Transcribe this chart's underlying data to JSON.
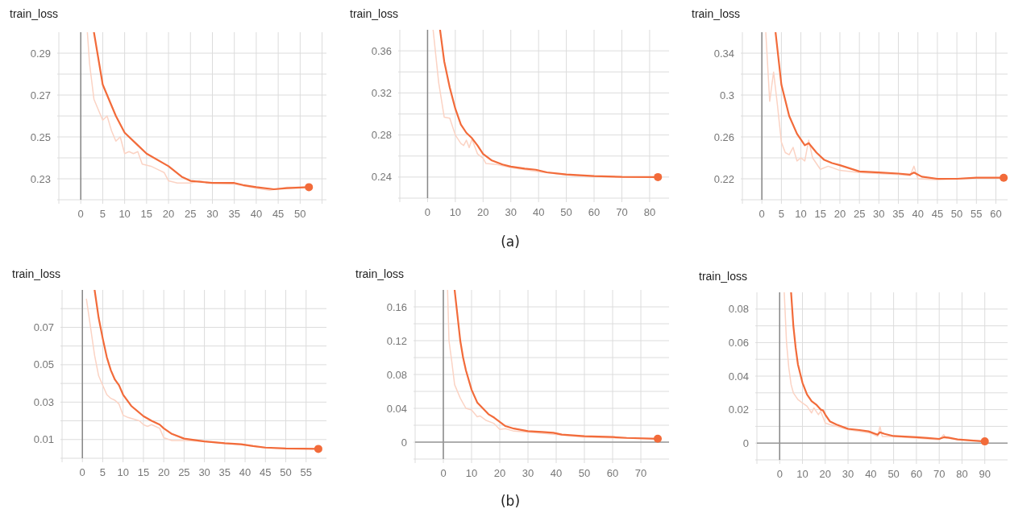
{
  "chart_data": [
    {
      "type": "line",
      "title": "train_loss",
      "xlim": [
        -5,
        56
      ],
      "ylim": [
        0.22,
        0.3
      ],
      "grid": true,
      "xticks": [
        {
          "value": -5,
          "label": null
        },
        0,
        5,
        10,
        15,
        20,
        25,
        30,
        35,
        40,
        45,
        50,
        {
          "value": 55,
          "label": null
        }
      ],
      "yticks": [
        {
          "value": 0.22,
          "label": null
        },
        0.23,
        {
          "value": 0.24,
          "label": null
        },
        0.25,
        {
          "value": 0.26,
          "label": null
        },
        0.27,
        {
          "value": 0.28,
          "label": null
        },
        0.29
      ],
      "series": [
        {
          "type": "line",
          "color": "#fbd3c4",
          "x": [
            1.5,
            2,
            3,
            5,
            6,
            7,
            8,
            9,
            10,
            11,
            12,
            13,
            14,
            16,
            18,
            19,
            20,
            22,
            25,
            27,
            30,
            35,
            40,
            43,
            47,
            52
          ],
          "values": [
            0.3,
            0.285,
            0.268,
            0.258,
            0.26,
            0.253,
            0.248,
            0.25,
            0.242,
            0.243,
            0.242,
            0.243,
            0.237,
            0.236,
            0.234,
            0.233,
            0.229,
            0.228,
            0.228,
            0.229,
            0.228,
            0.2275,
            0.2255,
            0.2245,
            0.226,
            0.226
          ]
        },
        {
          "type": "line",
          "color": "#f26b3a",
          "x": [
            3,
            5,
            7,
            8,
            10,
            13,
            15,
            20,
            23,
            25,
            30,
            35,
            37,
            40,
            44,
            47,
            52
          ],
          "values": [
            0.3,
            0.275,
            0.265,
            0.26,
            0.252,
            0.246,
            0.242,
            0.236,
            0.231,
            0.229,
            0.228,
            0.228,
            0.227,
            0.226,
            0.225,
            0.2255,
            0.226
          ]
        },
        {
          "type": "scatter",
          "marker": "circle",
          "color": "#f26b3a",
          "x": [
            52
          ],
          "values": [
            0.226
          ]
        }
      ]
    },
    {
      "type": "line",
      "title": "train_loss",
      "xlim": [
        -10,
        87
      ],
      "ylim": [
        0.22,
        0.38
      ],
      "grid": true,
      "annotations": [
        "(a)"
      ],
      "xticks": [
        {
          "value": -10,
          "label": null
        },
        0,
        10,
        20,
        30,
        40,
        50,
        60,
        70,
        80
      ],
      "yticks": [
        {
          "value": 0.22,
          "label": null
        },
        0.24,
        {
          "value": 0.26,
          "label": null
        },
        0.28,
        {
          "value": 0.3,
          "label": null
        },
        0.32,
        {
          "value": 0.34,
          "label": null
        },
        0.36
      ],
      "series": [
        {
          "type": "line",
          "color": "#fbd3c4",
          "x": [
            2,
            4,
            6,
            8,
            10,
            12,
            13,
            14,
            15,
            16,
            18,
            20,
            21,
            25,
            30,
            40,
            50,
            60,
            70,
            83
          ],
          "values": [
            0.38,
            0.33,
            0.297,
            0.296,
            0.28,
            0.272,
            0.27,
            0.275,
            0.268,
            0.276,
            0.262,
            0.258,
            0.253,
            0.252,
            0.249,
            0.245,
            0.242,
            0.2405,
            0.24,
            0.2395
          ]
        },
        {
          "type": "line",
          "color": "#f26b3a",
          "x": [
            4.5,
            6,
            8,
            10,
            12,
            14,
            16,
            18,
            20,
            23,
            27,
            30,
            35,
            39,
            43,
            50,
            60,
            70,
            83
          ],
          "values": [
            0.38,
            0.35,
            0.325,
            0.305,
            0.29,
            0.282,
            0.277,
            0.27,
            0.262,
            0.256,
            0.252,
            0.25,
            0.248,
            0.247,
            0.2445,
            0.2425,
            0.241,
            0.2402,
            0.24
          ]
        },
        {
          "type": "scatter",
          "marker": "circle",
          "color": "#f26b3a",
          "x": [
            83
          ],
          "values": [
            0.24
          ]
        }
      ]
    },
    {
      "type": "line",
      "title": "train_loss",
      "xlim": [
        -5,
        63
      ],
      "ylim": [
        0.2,
        0.36
      ],
      "grid": true,
      "xticks": [
        {
          "value": -5,
          "label": null
        },
        0,
        5,
        10,
        15,
        20,
        25,
        30,
        35,
        40,
        45,
        50,
        55,
        60
      ],
      "yticks": [
        {
          "value": 0.2,
          "label": null
        },
        0.22,
        {
          "value": 0.24,
          "label": null
        },
        0.26,
        {
          "value": 0.28,
          "label": null
        },
        0.3,
        {
          "value": 0.32,
          "label": null
        },
        0.34
      ],
      "series": [
        {
          "type": "line",
          "color": "#fbd3c4",
          "x": [
            1,
            2,
            3,
            4,
            5,
            6,
            7,
            8,
            9,
            10,
            11,
            12,
            13,
            15,
            17,
            20,
            25,
            30,
            35,
            38,
            39,
            40,
            45,
            50,
            55,
            62
          ],
          "values": [
            0.36,
            0.294,
            0.322,
            0.29,
            0.255,
            0.245,
            0.243,
            0.25,
            0.237,
            0.24,
            0.237,
            0.257,
            0.24,
            0.229,
            0.232,
            0.228,
            0.226,
            0.225,
            0.224,
            0.223,
            0.232,
            0.22,
            0.219,
            0.22,
            0.221,
            0.221
          ]
        },
        {
          "type": "line",
          "color": "#f26b3a",
          "x": [
            3.5,
            5,
            7,
            9,
            11,
            12,
            14,
            16,
            18,
            20,
            25,
            30,
            35,
            38,
            39,
            41,
            45,
            50,
            55,
            62
          ],
          "values": [
            0.36,
            0.31,
            0.28,
            0.263,
            0.252,
            0.254,
            0.245,
            0.238,
            0.235,
            0.233,
            0.227,
            0.226,
            0.225,
            0.224,
            0.226,
            0.222,
            0.22,
            0.22,
            0.221,
            0.221
          ]
        },
        {
          "type": "scatter",
          "marker": "circle",
          "color": "#f26b3a",
          "x": [
            62
          ],
          "values": [
            0.221
          ]
        }
      ]
    },
    {
      "type": "line",
      "title": "train_loss",
      "xlim": [
        -5,
        60
      ],
      "ylim": [
        0,
        0.09
      ],
      "grid": true,
      "xticks": [
        {
          "value": -5,
          "label": null
        },
        0,
        5,
        10,
        15,
        20,
        25,
        30,
        35,
        40,
        45,
        50,
        55
      ],
      "yticks": [
        {
          "value": 0,
          "label": null
        },
        0.01,
        {
          "value": 0.02,
          "label": null
        },
        0.03,
        {
          "value": 0.04,
          "label": null
        },
        0.05,
        {
          "value": 0.06,
          "label": null
        },
        0.07,
        {
          "value": 0.08,
          "label": null
        }
      ],
      "series": [
        {
          "type": "line",
          "color": "#fbd3c4",
          "x": [
            1,
            2,
            3,
            4,
            5,
            6,
            7,
            8,
            9,
            10,
            11,
            14,
            15,
            16,
            17,
            19,
            20,
            22,
            25,
            30,
            40,
            45,
            58
          ],
          "values": [
            0.085,
            0.07,
            0.055,
            0.044,
            0.039,
            0.034,
            0.032,
            0.031,
            0.029,
            0.023,
            0.022,
            0.02,
            0.018,
            0.017,
            0.018,
            0.016,
            0.011,
            0.0095,
            0.0095,
            0.009,
            0.007,
            0.0055,
            0.0049
          ]
        },
        {
          "type": "line",
          "color": "#f26b3a",
          "x": [
            3,
            4,
            5,
            6,
            7,
            8,
            9,
            10,
            12,
            15,
            17,
            19,
            20,
            22,
            25,
            30,
            35,
            39,
            42,
            45,
            50,
            58
          ],
          "values": [
            0.09,
            0.075,
            0.064,
            0.054,
            0.047,
            0.042,
            0.039,
            0.034,
            0.028,
            0.0225,
            0.02,
            0.018,
            0.016,
            0.013,
            0.0105,
            0.009,
            0.008,
            0.0075,
            0.0065,
            0.0057,
            0.0052,
            0.005
          ]
        },
        {
          "type": "scatter",
          "marker": "circle",
          "color": "#f26b3a",
          "x": [
            58
          ],
          "values": [
            0.005
          ]
        }
      ]
    },
    {
      "type": "line",
      "title": "train_loss",
      "xlim": [
        -10,
        80
      ],
      "ylim": [
        -0.02,
        0.18
      ],
      "grid": true,
      "annotations": [
        "(b)"
      ],
      "xticks": [
        {
          "value": -10,
          "label": null
        },
        0,
        10,
        20,
        30,
        40,
        50,
        60,
        70
      ],
      "yticks": [
        {
          "value": -0.02,
          "label": null
        },
        0,
        {
          "value": 0.02,
          "label": null
        },
        0.04,
        {
          "value": 0.06,
          "label": null
        },
        0.08,
        {
          "value": 0.1,
          "label": null
        },
        0.12,
        {
          "value": 0.14,
          "label": null
        },
        0.16
      ],
      "series": [
        {
          "type": "line",
          "color": "#fbd3c4",
          "x": [
            1.5,
            2,
            3,
            4,
            6,
            8,
            10,
            12,
            13,
            15,
            18,
            20,
            22,
            25,
            30,
            40,
            50,
            60,
            76
          ],
          "values": [
            0.18,
            0.12,
            0.095,
            0.068,
            0.052,
            0.04,
            0.038,
            0.03,
            0.031,
            0.026,
            0.022,
            0.015,
            0.016,
            0.013,
            0.012,
            0.009,
            0.006,
            0.005,
            0.004
          ]
        },
        {
          "type": "line",
          "color": "#f26b3a",
          "x": [
            4,
            5,
            6,
            7,
            8,
            10,
            12,
            14,
            16,
            18,
            20,
            22,
            25,
            30,
            35,
            39,
            42,
            50,
            60,
            65,
            76
          ],
          "values": [
            0.18,
            0.15,
            0.12,
            0.1,
            0.085,
            0.062,
            0.047,
            0.04,
            0.033,
            0.029,
            0.024,
            0.019,
            0.016,
            0.013,
            0.012,
            0.011,
            0.009,
            0.007,
            0.006,
            0.005,
            0.004
          ]
        },
        {
          "type": "scatter",
          "marker": "circle",
          "color": "#f26b3a",
          "x": [
            76
          ],
          "values": [
            0.004
          ]
        }
      ]
    },
    {
      "type": "line",
      "title": "train_loss",
      "xlim": [
        -10,
        100
      ],
      "ylim": [
        -0.01,
        0.09
      ],
      "grid": true,
      "xticks": [
        {
          "value": -10,
          "label": null
        },
        0,
        10,
        20,
        30,
        40,
        50,
        60,
        70,
        80,
        90
      ],
      "yticks": [
        {
          "value": -0.01,
          "label": null
        },
        0,
        {
          "value": 0.01,
          "label": null
        },
        0.02,
        {
          "value": 0.03,
          "label": null
        },
        0.04,
        {
          "value": 0.05,
          "label": null
        },
        0.06,
        {
          "value": 0.07,
          "label": null
        },
        0.08
      ],
      "series": [
        {
          "type": "line",
          "color": "#fbd3c4",
          "x": [
            2,
            3,
            4,
            5,
            6,
            8,
            10,
            12,
            14,
            15,
            17,
            18,
            20,
            22,
            25,
            30,
            40,
            43,
            44,
            45,
            50,
            60,
            70,
            72,
            73,
            80,
            90
          ],
          "values": [
            0.09,
            0.06,
            0.045,
            0.035,
            0.03,
            0.026,
            0.024,
            0.022,
            0.018,
            0.021,
            0.017,
            0.019,
            0.012,
            0.011,
            0.01,
            0.008,
            0.006,
            0.004,
            0.01,
            0.004,
            0.004,
            0.003,
            0.002,
            0.005,
            0.003,
            0.002,
            0.001
          ]
        },
        {
          "type": "line",
          "color": "#f26b3a",
          "x": [
            5,
            6,
            7,
            8,
            10,
            12,
            14,
            16,
            18,
            19,
            20,
            22,
            25,
            30,
            35,
            39,
            42,
            43,
            44,
            46,
            50,
            60,
            65,
            70,
            72,
            74,
            78,
            85,
            90
          ],
          "values": [
            0.09,
            0.07,
            0.057,
            0.047,
            0.036,
            0.029,
            0.025,
            0.023,
            0.02,
            0.0195,
            0.017,
            0.013,
            0.011,
            0.0085,
            0.0078,
            0.007,
            0.0055,
            0.005,
            0.0065,
            0.0055,
            0.0042,
            0.0035,
            0.003,
            0.0025,
            0.0035,
            0.0033,
            0.0022,
            0.0015,
            0.001
          ]
        },
        {
          "type": "scatter",
          "marker": "circle",
          "color": "#f26b3a",
          "x": [
            90
          ],
          "values": [
            0.001
          ]
        }
      ]
    }
  ]
}
